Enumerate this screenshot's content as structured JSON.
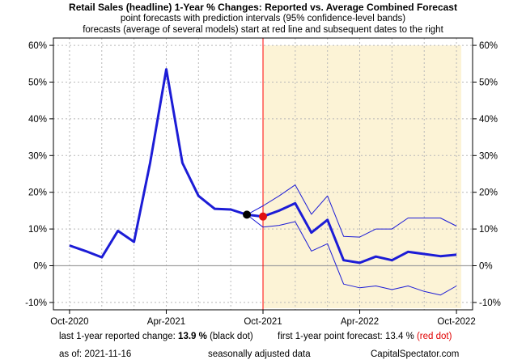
{
  "chart_data": {
    "type": "line",
    "title": "Retail Sales (headline) 1-Year % Changes: Reported vs. Average Combined Forecast",
    "subtitle_1": "point forecasts with prediction intervals (95% confidence-level bands)",
    "subtitle_2": "forecasts (average of several models) start at red line and subsequent dates to the right",
    "x_tick_labels": [
      "Oct-2020",
      "Apr-2021",
      "Oct-2021",
      "Apr-2022",
      "Oct-2022"
    ],
    "y_tick_labels_left": [
      "60%",
      "50%",
      "40%",
      "30%",
      "20%",
      "10%",
      "0%",
      "-10%"
    ],
    "y_tick_labels_right": [
      "60%",
      "50%",
      "40%",
      "30%",
      "20%",
      "10%",
      "0%",
      "-10%"
    ],
    "ylim": [
      -12,
      62
    ],
    "y_ticks": [
      60,
      50,
      40,
      30,
      20,
      10,
      0,
      -10
    ],
    "x_tick_positions": [
      0,
      6,
      12,
      18,
      24
    ],
    "xlim": [
      -1,
      25
    ],
    "forecast_start_x": 12,
    "grid": true,
    "colors": {
      "reported": "#1c1cd6",
      "forecast": "#1c1cd6",
      "bands": "#1c1cd6",
      "forecast_line": "#ff0000",
      "shade": "#fcf3d6",
      "zero_line": "#a0a0a0",
      "black_dot": "#000000",
      "red_dot": "#e01010"
    },
    "series": [
      {
        "key": "reported",
        "x": [
          0,
          1,
          2,
          3,
          4,
          5,
          6,
          7,
          8,
          9,
          10,
          11
        ],
        "values": [
          5.5,
          4.0,
          2.3,
          9.5,
          6.5,
          28.0,
          53.5,
          28.0,
          19.0,
          15.5,
          15.3,
          13.9
        ]
      },
      {
        "key": "forecast",
        "x": [
          11,
          12,
          13,
          14,
          15,
          16,
          17,
          18,
          19,
          20,
          21,
          22,
          23,
          24
        ],
        "values": [
          13.9,
          13.4,
          15.0,
          17.0,
          9.0,
          12.5,
          1.5,
          0.8,
          2.5,
          1.5,
          3.8,
          3.2,
          2.6,
          3.0
        ]
      },
      {
        "key": "upper_band",
        "x": [
          11,
          12,
          13,
          14,
          15,
          16,
          17,
          18,
          19,
          20,
          21,
          22,
          23,
          24
        ],
        "values": [
          13.9,
          16.3,
          19.0,
          22.0,
          14.0,
          19.0,
          8.0,
          7.8,
          10.0,
          10.0,
          13.0,
          13.0,
          13.0,
          10.8
        ]
      },
      {
        "key": "lower_band",
        "x": [
          11,
          12,
          13,
          14,
          15,
          16,
          17,
          18,
          19,
          20,
          21,
          22,
          23,
          24
        ],
        "values": [
          13.9,
          10.5,
          11.0,
          12.0,
          4.0,
          6.0,
          -5.0,
          -6.0,
          -5.5,
          -6.5,
          -5.5,
          -7.0,
          -8.0,
          -5.5
        ]
      }
    ],
    "points": [
      {
        "key": "black_dot",
        "x": 11,
        "y": 13.9
      },
      {
        "key": "red_dot",
        "x": 12,
        "y": 13.4
      }
    ]
  },
  "footer": {
    "reported_label": "last 1-year reported change:",
    "reported_value": "13.9 %",
    "reported_note": "(black dot)",
    "forecast_label": "first 1-year point forecast:",
    "forecast_value": "13.4 %",
    "forecast_note": "(red dot)",
    "asof_label": "as of:",
    "asof_date": "2021-11-16",
    "adjusted": "seasonally adjusted data",
    "source": "CapitalSpectator.com"
  }
}
